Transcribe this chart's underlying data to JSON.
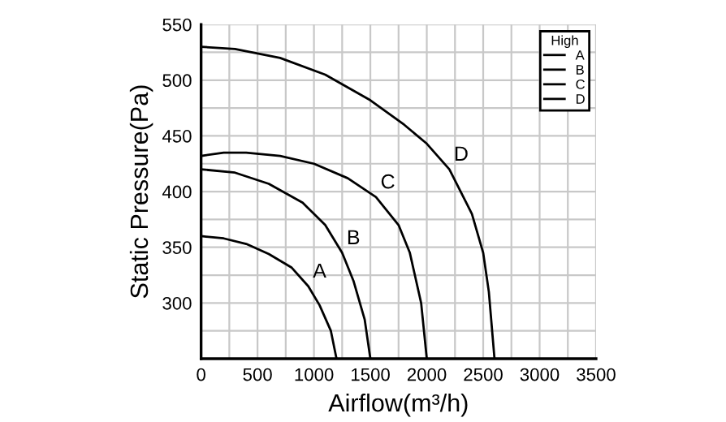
{
  "chart_data": {
    "type": "line",
    "xlabel": "Airflow(m³/h)",
    "ylabel": "Static Pressure(Pa)",
    "legend_title": "High",
    "legend": "top right",
    "grid": true,
    "marker": "none",
    "line_style": "solid",
    "xlim": [
      0,
      3500
    ],
    "xticks": [
      0,
      500,
      1000,
      1500,
      2000,
      2500,
      3000,
      3500
    ],
    "ylim": [
      250,
      550
    ],
    "yticks": [
      300,
      350,
      400,
      450,
      500,
      550
    ],
    "series": [
      {
        "name": "A",
        "color": "#000000",
        "x": [
          0,
          200,
          400,
          600,
          800,
          950,
          1050,
          1150,
          1200
        ],
        "values": [
          360,
          358,
          353,
          344,
          332,
          315,
          298,
          275,
          250
        ]
      },
      {
        "name": "B",
        "color": "#000000",
        "x": [
          0,
          300,
          600,
          900,
          1100,
          1250,
          1350,
          1450,
          1500
        ],
        "values": [
          420,
          417,
          407,
          390,
          370,
          345,
          320,
          285,
          250
        ]
      },
      {
        "name": "C",
        "color": "#000000",
        "x": [
          0,
          200,
          400,
          700,
          1000,
          1300,
          1550,
          1750,
          1850,
          1950,
          2000
        ],
        "values": [
          432,
          435,
          435,
          432,
          425,
          412,
          395,
          370,
          345,
          300,
          250
        ]
      },
      {
        "name": "D",
        "color": "#000000",
        "x": [
          0,
          300,
          700,
          1100,
          1500,
          1800,
          2000,
          2200,
          2400,
          2500,
          2550,
          2600
        ],
        "values": [
          530,
          528,
          520,
          505,
          482,
          460,
          443,
          420,
          380,
          345,
          310,
          250
        ]
      }
    ]
  }
}
